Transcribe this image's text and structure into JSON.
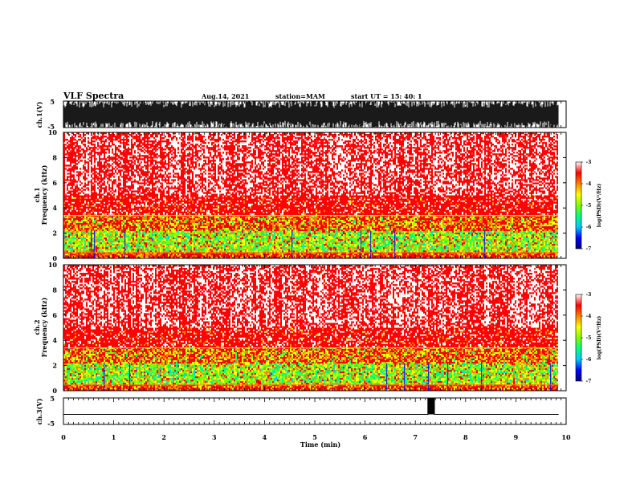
{
  "header": {
    "title": "VLF Spectra",
    "date": "Aug.14, 2021",
    "station": "station=MAM",
    "start": "start UT =  15: 40: 1"
  },
  "colors": {
    "colormap": [
      "#000080",
      "#0000ff",
      "#00c8ff",
      "#00ff80",
      "#80ff00",
      "#ffff00",
      "#ff8000",
      "#ff0000",
      "#ffffff"
    ]
  },
  "chart_data": [
    {
      "type": "line",
      "name": "ch1-waveform",
      "ylabel": "ch.1(V)",
      "ylim": [
        -5,
        5
      ],
      "yticks": [
        5,
        -5
      ],
      "xlim": [
        0,
        10
      ]
    },
    {
      "type": "heatmap",
      "name": "ch1-spectrogram",
      "ylabel": "ch.1\nFrequency (kHz)",
      "ylim": [
        0,
        10
      ],
      "yticks": [
        0,
        2,
        4,
        6,
        8,
        10
      ],
      "xlim": [
        0,
        10
      ],
      "data_end_min": 9.85,
      "colorbar": {
        "label": "log(PSD)(V²/Hz)",
        "range": [
          -7,
          -3
        ],
        "ticks": [
          -3,
          -4,
          -5,
          -6,
          -7
        ]
      }
    },
    {
      "type": "heatmap",
      "name": "ch2-spectrogram",
      "ylabel": "ch.2\nFrequency (kHz)",
      "ylim": [
        0,
        10
      ],
      "yticks": [
        0,
        2,
        4,
        6,
        8,
        10
      ],
      "xlim": [
        0,
        10
      ],
      "data_end_min": 9.85,
      "colorbar": {
        "label": "log(PSD)(V²/Hz)",
        "range": [
          -7,
          -3
        ],
        "ticks": [
          -3,
          -4,
          -5,
          -6,
          -7
        ]
      }
    },
    {
      "type": "line",
      "name": "ch3-waveform",
      "ylabel": "ch.3(V)",
      "ylim": [
        -5,
        5
      ],
      "yticks": [
        5,
        -5
      ],
      "xlim": [
        0,
        10
      ],
      "x": [
        0,
        7.25,
        7.25,
        7.38,
        7.38,
        9.85
      ],
      "y": [
        -1.2,
        -1.2,
        5,
        5,
        -1.2,
        -1.2
      ]
    }
  ],
  "xaxis": {
    "label": "Time (min)",
    "ticks": [
      0,
      1,
      2,
      3,
      4,
      5,
      6,
      7,
      8,
      9,
      10
    ]
  },
  "colorbar_label": "log(PSD)(V²/Hz)"
}
